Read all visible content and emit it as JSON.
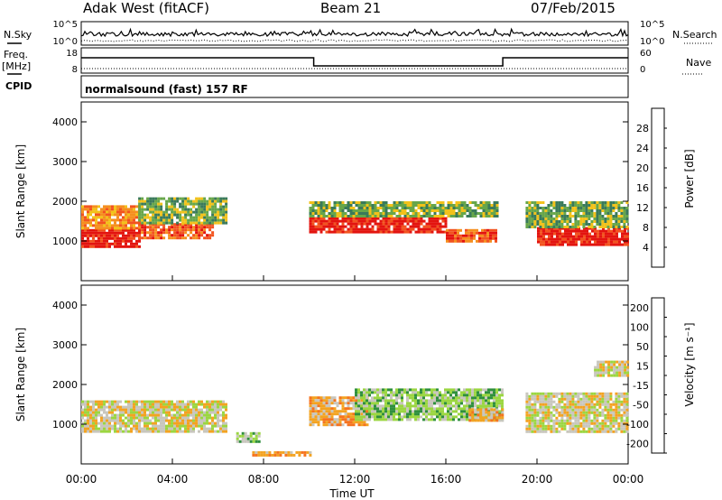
{
  "header": {
    "radar": "Adak West (fitACF)",
    "beam": "Beam 21",
    "date": "07/Feb/2015"
  },
  "left_labels": {
    "nsky": "N.Sky",
    "freq": "Freq.",
    "freq_unit": "[MHz]",
    "cpid": "CPID"
  },
  "right_labels": {
    "nsearch": "N.Search",
    "nave": "Nave"
  },
  "noise_panel": {
    "left_ticks": [
      "10^5",
      "10^0"
    ],
    "right_ticks": [
      "10^5",
      "10^0"
    ]
  },
  "freq_panel": {
    "left_ticks": [
      "18",
      "8"
    ],
    "right_ticks": [
      "60",
      "0"
    ]
  },
  "cpid_text": "normalsound (fast) 157 RF",
  "colors": {
    "power": [
      "#1a2cd9",
      "#2f55b3",
      "#3a7a5a",
      "#67a64a",
      "#f2c21a",
      "#f58f1f",
      "#f2531f",
      "#e3140f"
    ],
    "velocity": [
      "#e3140f",
      "#f5731f",
      "#f3a321",
      "#c8c6bd",
      "#9bd641",
      "#2f8f3d",
      "#2f55b3",
      "#1e2c9e"
    ],
    "ground_scatter": "#bfbfbf"
  },
  "chart_data": [
    {
      "type": "heatmap",
      "name": "Power",
      "ylabel": "Slant Range [km]",
      "yticks": [
        "1000",
        "2000",
        "3000",
        "4000"
      ],
      "ylim": [
        0,
        4500
      ],
      "xlim": [
        "00:00",
        "24:00"
      ],
      "colorbar": {
        "label": "Power [dB]",
        "ticks": [
          "4",
          "8",
          "12",
          "16",
          "20",
          "24",
          "28"
        ],
        "range": [
          0,
          32
        ]
      },
      "regions": [
        {
          "t0": 0.0,
          "t1": 2.5,
          "r0": 850,
          "r1": 1300,
          "level": 7
        },
        {
          "t0": 0.0,
          "t1": 2.5,
          "r0": 1300,
          "r1": 1900,
          "level": 5
        },
        {
          "t0": 2.5,
          "t1": 5.8,
          "r0": 1050,
          "r1": 1450,
          "level": 6
        },
        {
          "t0": 2.5,
          "t1": 6.4,
          "r0": 1450,
          "r1": 2100,
          "level": 3
        },
        {
          "t0": 10.0,
          "t1": 16.0,
          "r0": 1200,
          "r1": 1600,
          "level": 7
        },
        {
          "t0": 10.0,
          "t1": 18.2,
          "r0": 1600,
          "r1": 2000,
          "level": 3
        },
        {
          "t0": 16.0,
          "t1": 18.2,
          "r0": 1000,
          "r1": 1300,
          "level": 6
        },
        {
          "t0": 20.0,
          "t1": 24.0,
          "r0": 900,
          "r1": 1350,
          "level": 7
        },
        {
          "t0": 19.5,
          "t1": 24.0,
          "r0": 1350,
          "r1": 2000,
          "level": 3
        }
      ]
    },
    {
      "type": "heatmap",
      "name": "Velocity",
      "ylabel": "Slant Range [km]",
      "yticks": [
        "1000",
        "2000",
        "3000",
        "4000"
      ],
      "ylim": [
        0,
        4500
      ],
      "xlabel": "Time UT",
      "xticks": [
        "00:00",
        "04:00",
        "08:00",
        "12:00",
        "16:00",
        "20:00",
        "00:00"
      ],
      "xlim": [
        "00:00",
        "24:00"
      ],
      "colorbar": {
        "label": "Velocity [m s⁻¹]",
        "ticks": [
          "200",
          "100",
          "50",
          "15",
          "-15",
          "-50",
          "-100",
          "-200"
        ],
        "range": [
          -250,
          250
        ]
      },
      "regions": [
        {
          "t0": 0.0,
          "t1": 6.3,
          "r0": 800,
          "r1": 1600,
          "level": 3
        },
        {
          "t0": 6.8,
          "t1": 7.8,
          "r0": 550,
          "r1": 800,
          "level": 4
        },
        {
          "t0": 7.5,
          "t1": 10.0,
          "r0": 200,
          "r1": 320,
          "level": 2
        },
        {
          "t0": 10.0,
          "t1": 12.5,
          "r0": 1000,
          "r1": 1700,
          "level": 2
        },
        {
          "t0": 12.0,
          "t1": 18.5,
          "r0": 1100,
          "r1": 1900,
          "level": 4
        },
        {
          "t0": 17.0,
          "t1": 18.5,
          "r0": 1100,
          "r1": 1400,
          "level": 2
        },
        {
          "t0": 19.5,
          "t1": 24.0,
          "r0": 800,
          "r1": 1800,
          "level": 3
        },
        {
          "t0": 22.5,
          "t1": 24.0,
          "r0": 2200,
          "r1": 2600,
          "level": 3
        }
      ]
    }
  ]
}
